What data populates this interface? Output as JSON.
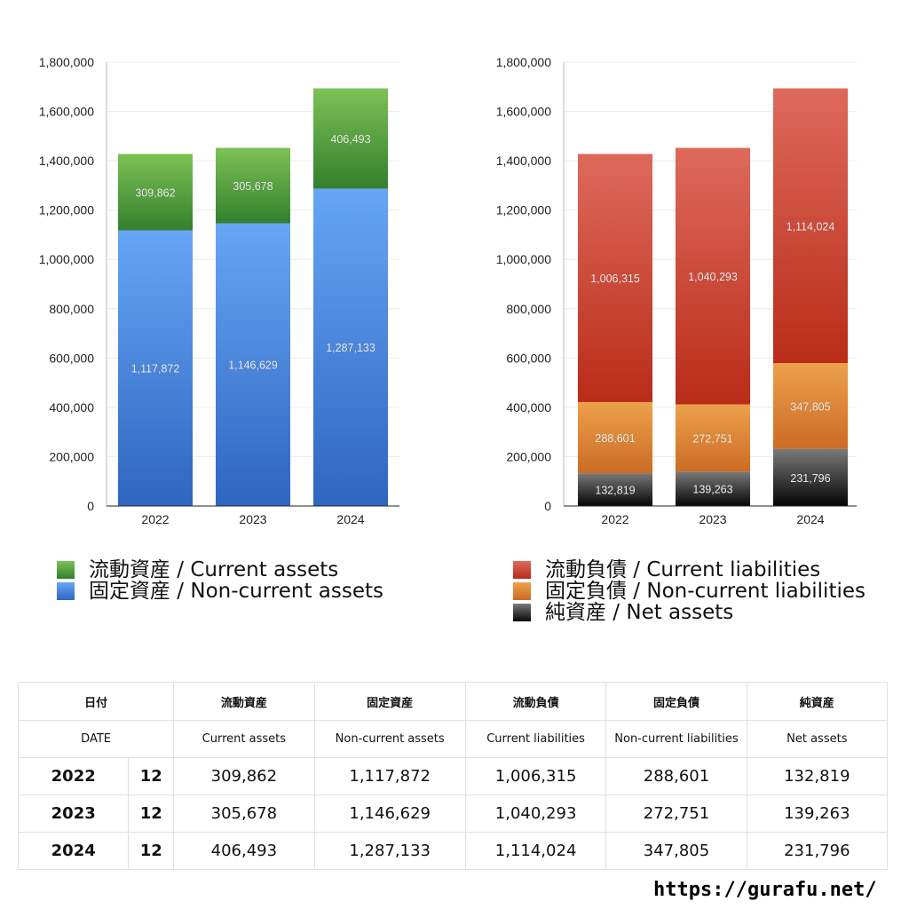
{
  "chart_data": [
    {
      "type": "bar",
      "stacked": true,
      "categories": [
        "2022",
        "2023",
        "2024"
      ],
      "series": [
        {
          "name": "固定資産 / Non-current assets",
          "values": [
            1117872,
            1146629,
            1287133
          ],
          "color": "#4a86dc"
        },
        {
          "name": "流動資産 / Current assets",
          "values": [
            309862,
            305678,
            406493
          ],
          "color": "#55a63f"
        }
      ],
      "ylim": [
        0,
        1800000
      ],
      "yticks": [
        "0",
        "200,000",
        "400,000",
        "600,000",
        "800,000",
        "1,000,000",
        "1,200,000",
        "1,400,000",
        "1,600,000",
        "1,800,000"
      ],
      "data_labels": [
        [
          "1,117,872",
          "1,146,629",
          "1,287,133"
        ],
        [
          "309,862",
          "305,678",
          "406,493"
        ]
      ],
      "grid": true,
      "legend_position": "bottom-left"
    },
    {
      "type": "bar",
      "stacked": true,
      "categories": [
        "2022",
        "2023",
        "2024"
      ],
      "series": [
        {
          "name": "純資産 / Net assets",
          "values": [
            132819,
            139263,
            231796
          ],
          "color": "#444444"
        },
        {
          "name": "固定負債 / Non-current liabilities",
          "values": [
            288601,
            272751,
            347805
          ],
          "color": "#e08b3a"
        },
        {
          "name": "流動負債 / Current liabilities",
          "values": [
            1006315,
            1040293,
            1114024
          ],
          "color": "#cc4433"
        }
      ],
      "ylim": [
        0,
        1800000
      ],
      "yticks": [
        "0",
        "200,000",
        "400,000",
        "600,000",
        "800,000",
        "1,000,000",
        "1,200,000",
        "1,400,000",
        "1,600,000",
        "1,800,000"
      ],
      "data_labels": [
        [
          "132,819",
          "139,263",
          "231,796"
        ],
        [
          "288,601",
          "272,751",
          "347,805"
        ],
        [
          "1,006,315",
          "1,040,293",
          "1,114,024"
        ]
      ],
      "grid": true,
      "legend_position": "bottom-left"
    }
  ],
  "legend_left": [
    {
      "label": "流動資産 / Current assets",
      "color": "#5aaa44"
    },
    {
      "label": "固定資産 / Non-current assets",
      "color": "#4a86dc"
    }
  ],
  "legend_right": [
    {
      "label": "流動負債 / Current liabilities",
      "color": "#d04a3a"
    },
    {
      "label": "固定負債 / Non-current liabilities",
      "color": "#e48a38"
    },
    {
      "label": "純資産 / Net assets",
      "color": "#222222"
    }
  ],
  "table": {
    "header_jp": [
      "日付",
      "流動資産",
      "固定資産",
      "流動負債",
      "固定負債",
      "純資産"
    ],
    "header_en": [
      "DATE",
      "Current assets",
      "Non-current assets",
      "Current liabilities",
      "Non-current liabilities",
      "Net assets"
    ],
    "rows": [
      {
        "year": "2022",
        "month": "12",
        "values": [
          "309,862",
          "1,117,872",
          "1,006,315",
          "288,601",
          "132,819"
        ]
      },
      {
        "year": "2023",
        "month": "12",
        "values": [
          "305,678",
          "1,146,629",
          "1,040,293",
          "272,751",
          "139,263"
        ]
      },
      {
        "year": "2024",
        "month": "12",
        "values": [
          "406,493",
          "1,287,133",
          "1,114,024",
          "347,805",
          "231,796"
        ]
      }
    ]
  },
  "site_url": "https://gurafu.net/"
}
